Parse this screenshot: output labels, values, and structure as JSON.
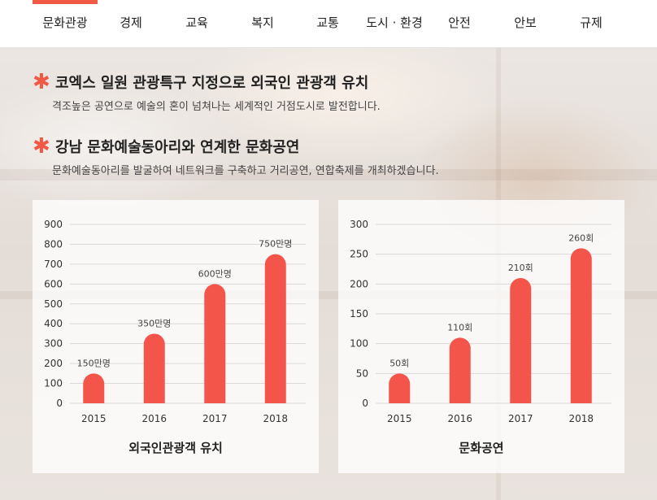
{
  "nav": {
    "tabs": [
      {
        "label": "문화관광",
        "active": true
      },
      {
        "label": "경제",
        "active": false
      },
      {
        "label": "교육",
        "active": false
      },
      {
        "label": "복지",
        "active": false
      },
      {
        "label": "교통",
        "active": false
      },
      {
        "label": "도시 · 환경",
        "active": false
      },
      {
        "label": "안전",
        "active": false
      },
      {
        "label": "안보",
        "active": false
      },
      {
        "label": "규제",
        "active": false
      }
    ]
  },
  "sections": [
    {
      "title": "코엑스 일원 관광특구 지정으로 외국인 관광객 유치",
      "desc": "격조높은 공연으로 예술의 혼이 넘쳐나는 세계적인 거점도시로 발전합니다."
    },
    {
      "title": "강남 문화예술동아리와 연계한 문화공연",
      "desc": "문화예술동아리를 발굴하여 네트워크를 구축하고 거리공연, 연합축제를 개최하겠습니다."
    }
  ],
  "colors": {
    "accent": "#f05a45",
    "bar": "#f4554a",
    "grid": "#d9d9d9"
  },
  "chart_data": [
    {
      "type": "bar",
      "title": "외국인관광객 유치",
      "categories": [
        "2015",
        "2016",
        "2017",
        "2018"
      ],
      "values": [
        150,
        350,
        600,
        750
      ],
      "data_labels": [
        "150만명",
        "350만명",
        "600만명",
        "750만명"
      ],
      "ylim": [
        0,
        900
      ],
      "yticks": [
        0,
        100,
        200,
        300,
        400,
        500,
        600,
        700,
        800,
        900
      ],
      "grid": true
    },
    {
      "type": "bar",
      "title": "문화공연",
      "categories": [
        "2015",
        "2016",
        "2017",
        "2018"
      ],
      "values": [
        50,
        110,
        210,
        260
      ],
      "data_labels": [
        "50회",
        "110회",
        "210회",
        "260회"
      ],
      "ylim": [
        0,
        300
      ],
      "yticks": [
        0,
        50,
        100,
        150,
        200,
        250,
        300
      ],
      "grid": true
    }
  ]
}
